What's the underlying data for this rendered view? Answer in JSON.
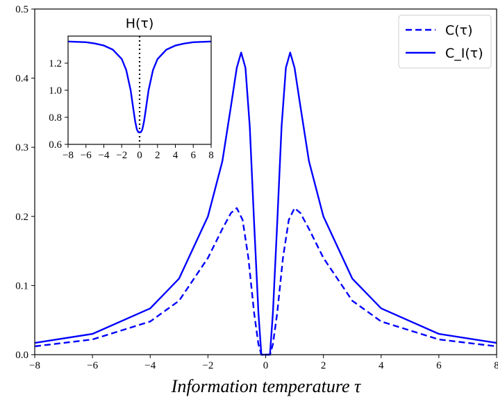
{
  "chart_data": [
    {
      "type": "line",
      "title": "",
      "xlabel": "Information temperature τ",
      "ylabel": "",
      "xlim": [
        -8,
        8
      ],
      "ylim": [
        0,
        0.5
      ],
      "x_ticks": [
        "−8",
        "−6",
        "−4",
        "−2",
        "0",
        "2",
        "4",
        "6",
        "8"
      ],
      "y_ticks": [
        "0.0",
        "0.1",
        "0.2",
        "0.3",
        "0.4",
        "0.5"
      ],
      "legend_position": "top-right",
      "series": [
        {
          "name": "C(τ)",
          "style": "dashed",
          "color": "#0000ff",
          "points": [
            [
              -8,
              0.012
            ],
            [
              -6,
              0.022
            ],
            [
              -4,
              0.048
            ],
            [
              -3,
              0.078
            ],
            [
              -2,
              0.14
            ],
            [
              -1.5,
              0.182
            ],
            [
              -1.2,
              0.205
            ],
            [
              -1.0,
              0.212
            ],
            [
              -0.8,
              0.195
            ],
            [
              -0.6,
              0.14
            ],
            [
              -0.4,
              0.06
            ],
            [
              -0.25,
              0.015
            ],
            [
              -0.15,
              0.0
            ],
            [
              0,
              0.0
            ],
            [
              0.15,
              0.0
            ],
            [
              0.25,
              0.015
            ],
            [
              0.4,
              0.06
            ],
            [
              0.6,
              0.14
            ],
            [
              0.8,
              0.195
            ],
            [
              1.0,
              0.212
            ],
            [
              1.2,
              0.205
            ],
            [
              1.5,
              0.182
            ],
            [
              2,
              0.14
            ],
            [
              3,
              0.078
            ],
            [
              4,
              0.048
            ],
            [
              6,
              0.022
            ],
            [
              8,
              0.012
            ]
          ]
        },
        {
          "name": "C_I(τ)",
          "style": "solid",
          "color": "#0000ff",
          "points": [
            [
              -8,
              0.017
            ],
            [
              -6,
              0.03
            ],
            [
              -4,
              0.067
            ],
            [
              -3,
              0.11
            ],
            [
              -2,
              0.2
            ],
            [
              -1.5,
              0.28
            ],
            [
              -1.2,
              0.36
            ],
            [
              -1.0,
              0.415
            ],
            [
              -0.85,
              0.437
            ],
            [
              -0.7,
              0.415
            ],
            [
              -0.55,
              0.33
            ],
            [
              -0.4,
              0.19
            ],
            [
              -0.25,
              0.06
            ],
            [
              -0.15,
              0.0
            ],
            [
              0,
              0.0
            ],
            [
              0.15,
              0.0
            ],
            [
              0.25,
              0.06
            ],
            [
              0.4,
              0.19
            ],
            [
              0.55,
              0.33
            ],
            [
              0.7,
              0.415
            ],
            [
              0.85,
              0.437
            ],
            [
              1.0,
              0.415
            ],
            [
              1.2,
              0.36
            ],
            [
              1.5,
              0.28
            ],
            [
              2,
              0.2
            ],
            [
              3,
              0.11
            ],
            [
              4,
              0.067
            ],
            [
              6,
              0.03
            ],
            [
              8,
              0.017
            ]
          ]
        }
      ]
    },
    {
      "type": "line",
      "title": "H(τ)",
      "xlabel": "",
      "ylabel": "",
      "xlim": [
        -8,
        8
      ],
      "ylim": [
        0.6,
        1.4
      ],
      "x_ticks": [
        "−8",
        "−6",
        "−4",
        "−2",
        "0",
        "2",
        "4",
        "6",
        "8"
      ],
      "y_ticks": [
        "0.6",
        "0.8",
        "1.0",
        "1.2"
      ],
      "vertical_line": {
        "x": 0,
        "style": "dotted",
        "color": "#000000"
      },
      "series": [
        {
          "name": "",
          "style": "solid",
          "color": "#0000ff",
          "points": [
            [
              -8,
              1.36
            ],
            [
              -6,
              1.355
            ],
            [
              -5,
              1.345
            ],
            [
              -4,
              1.33
            ],
            [
              -3,
              1.3
            ],
            [
              -2,
              1.23
            ],
            [
              -1.5,
              1.15
            ],
            [
              -1.0,
              1.0
            ],
            [
              -0.7,
              0.86
            ],
            [
              -0.5,
              0.77
            ],
            [
              -0.3,
              0.71
            ],
            [
              -0.15,
              0.69
            ],
            [
              0,
              0.69
            ],
            [
              0.15,
              0.69
            ],
            [
              0.3,
              0.71
            ],
            [
              0.5,
              0.77
            ],
            [
              0.7,
              0.86
            ],
            [
              1.0,
              1.0
            ],
            [
              1.5,
              1.15
            ],
            [
              2,
              1.23
            ],
            [
              3,
              1.3
            ],
            [
              4,
              1.33
            ],
            [
              5,
              1.345
            ],
            [
              6,
              1.355
            ],
            [
              8,
              1.36
            ]
          ]
        }
      ]
    }
  ]
}
